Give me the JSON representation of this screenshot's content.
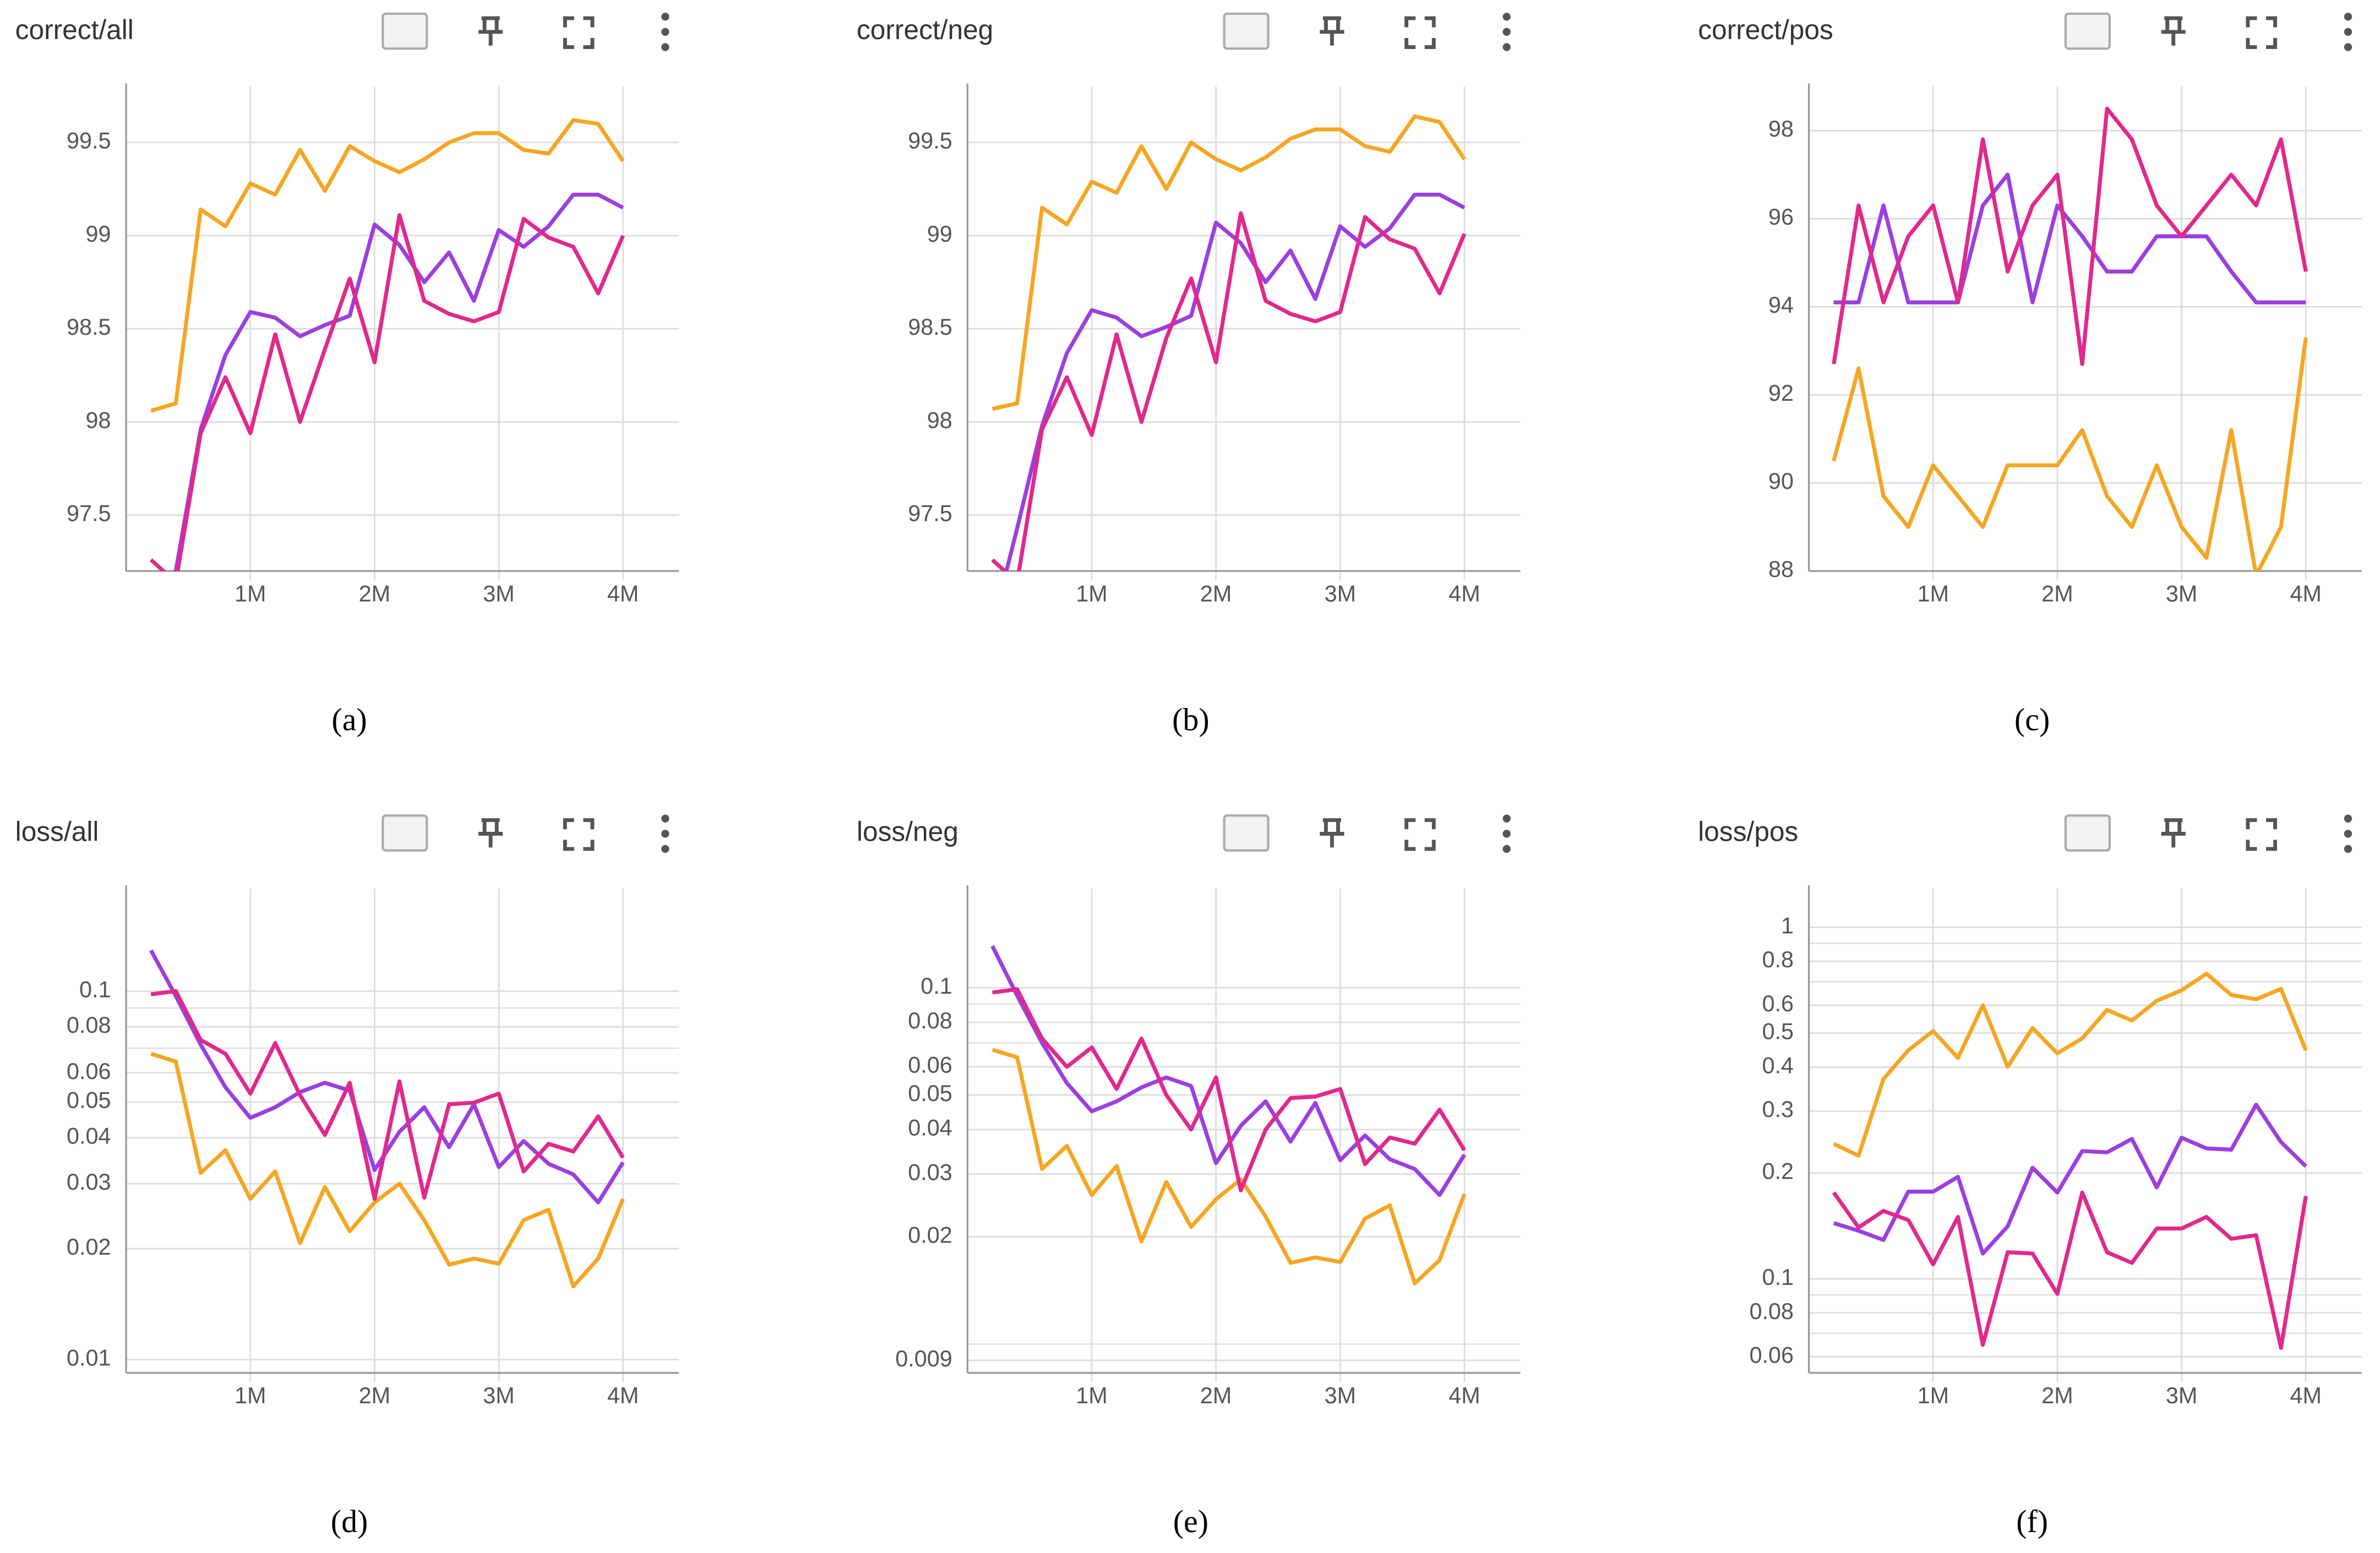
{
  "chart_data": [
    {
      "type": "line",
      "title": "correct/all",
      "caption": "(a)",
      "grid": true,
      "log_scale": false,
      "x": [
        0.2,
        0.4,
        0.6,
        0.8,
        1.0,
        1.2,
        1.4,
        1.6,
        1.8,
        2.0,
        2.2,
        2.4,
        2.6,
        2.8,
        3.0,
        3.2,
        3.4,
        3.6,
        3.8,
        4.0
      ],
      "xlim": [
        0,
        4.45
      ],
      "xticks": [
        {
          "value": 1,
          "label": "1M"
        },
        {
          "value": 2,
          "label": "2M"
        },
        {
          "value": 3,
          "label": "3M"
        },
        {
          "value": 4,
          "label": "4M"
        }
      ],
      "ylim": [
        97.2,
        99.8
      ],
      "yticks": [
        97.5,
        98,
        98.5,
        99,
        99.5
      ],
      "series": [
        {
          "color": "#f5a623",
          "values": [
            98.06,
            98.1,
            99.14,
            99.05,
            99.28,
            99.22,
            99.46,
            99.24,
            99.48,
            99.4,
            99.34,
            99.41,
            99.5,
            99.55,
            99.55,
            99.46,
            99.44,
            99.62,
            99.6,
            99.4
          ]
        },
        {
          "color": "#9b3fe0",
          "values": [
            96.9,
            97.2,
            97.96,
            98.36,
            98.59,
            98.56,
            98.46,
            98.52,
            98.57,
            99.06,
            98.95,
            98.75,
            98.91,
            98.65,
            99.03,
            98.94,
            99.05,
            99.22,
            99.22,
            99.15
          ]
        },
        {
          "color": "#e0298c",
          "values": [
            97.26,
            97.14,
            97.94,
            98.24,
            97.94,
            98.47,
            98.0,
            98.39,
            98.77,
            98.32,
            99.11,
            98.65,
            98.58,
            98.54,
            98.59,
            99.09,
            98.99,
            98.94,
            98.69,
            99.0
          ]
        }
      ]
    },
    {
      "type": "line",
      "title": "correct/neg",
      "caption": "(b)",
      "grid": true,
      "log_scale": false,
      "x": [
        0.2,
        0.4,
        0.6,
        0.8,
        1.0,
        1.2,
        1.4,
        1.6,
        1.8,
        2.0,
        2.2,
        2.4,
        2.6,
        2.8,
        3.0,
        3.2,
        3.4,
        3.6,
        3.8,
        4.0
      ],
      "xlim": [
        0,
        4.45
      ],
      "xticks": [
        {
          "value": 1,
          "label": "1M"
        },
        {
          "value": 2,
          "label": "2M"
        },
        {
          "value": 3,
          "label": "3M"
        },
        {
          "value": 4,
          "label": "4M"
        }
      ],
      "ylim": [
        97.2,
        99.8
      ],
      "yticks": [
        97.5,
        98,
        98.5,
        99,
        99.5
      ],
      "series": [
        {
          "color": "#f5a623",
          "values": [
            98.07,
            98.1,
            99.15,
            99.06,
            99.29,
            99.23,
            99.48,
            99.25,
            99.5,
            99.41,
            99.35,
            99.42,
            99.52,
            99.57,
            99.57,
            99.48,
            99.45,
            99.64,
            99.61,
            99.41
          ]
        },
        {
          "color": "#9b3fe0",
          "values": [
            96.9,
            97.43,
            97.98,
            98.37,
            98.6,
            98.56,
            98.46,
            98.51,
            98.57,
            99.07,
            98.96,
            98.75,
            98.92,
            98.66,
            99.05,
            98.94,
            99.04,
            99.22,
            99.22,
            99.15
          ]
        },
        {
          "color": "#e0298c",
          "values": [
            97.26,
            97.14,
            97.96,
            98.24,
            97.93,
            98.47,
            98.0,
            98.45,
            98.77,
            98.32,
            99.12,
            98.65,
            98.58,
            98.54,
            98.59,
            99.1,
            98.98,
            98.93,
            98.69,
            99.01
          ]
        }
      ]
    },
    {
      "type": "line",
      "title": "correct/pos",
      "caption": "(c)",
      "grid": true,
      "log_scale": false,
      "x": [
        0.2,
        0.4,
        0.6,
        0.8,
        1.0,
        1.2,
        1.4,
        1.6,
        1.8,
        2.0,
        2.2,
        2.4,
        2.6,
        2.8,
        3.0,
        3.2,
        3.4,
        3.6,
        3.8,
        4.0
      ],
      "xlim": [
        0,
        4.45
      ],
      "xticks": [
        {
          "value": 1,
          "label": "1M"
        },
        {
          "value": 2,
          "label": "2M"
        },
        {
          "value": 3,
          "label": "3M"
        },
        {
          "value": 4,
          "label": "4M"
        }
      ],
      "ylim": [
        88,
        99
      ],
      "yticks": [
        88,
        90,
        92,
        94,
        96,
        98
      ],
      "series": [
        {
          "color": "#f5a623",
          "values": [
            90.5,
            92.6,
            89.7,
            89.0,
            90.4,
            89.7,
            89.0,
            90.4,
            90.4,
            90.4,
            91.2,
            89.7,
            89.0,
            90.4,
            89.0,
            88.3,
            91.2,
            87.9,
            89.0,
            93.3
          ]
        },
        {
          "color": "#9b3fe0",
          "values": [
            94.1,
            94.1,
            96.3,
            94.1,
            94.1,
            94.1,
            96.3,
            97.0,
            94.1,
            96.3,
            95.6,
            94.8,
            94.8,
            95.6,
            95.6,
            95.6,
            94.8,
            94.1,
            94.1,
            94.1
          ]
        },
        {
          "color": "#e0298c",
          "values": [
            92.7,
            96.3,
            94.1,
            95.6,
            96.3,
            94.1,
            97.8,
            94.8,
            96.3,
            97.0,
            92.7,
            98.5,
            97.8,
            96.3,
            95.6,
            96.3,
            97.0,
            96.3,
            97.8,
            94.8
          ]
        }
      ]
    },
    {
      "type": "line",
      "title": "loss/all",
      "caption": "(d)",
      "grid": true,
      "log_scale": true,
      "x": [
        0.2,
        0.4,
        0.6,
        0.8,
        1.0,
        1.2,
        1.4,
        1.6,
        1.8,
        2.0,
        2.2,
        2.4,
        2.6,
        2.8,
        3.0,
        3.2,
        3.4,
        3.6,
        3.8,
        4.0
      ],
      "xlim": [
        0,
        4.45
      ],
      "xticks": [
        {
          "value": 1,
          "label": "1M"
        },
        {
          "value": 2,
          "label": "2M"
        },
        {
          "value": 3,
          "label": "3M"
        },
        {
          "value": 4,
          "label": "4M"
        }
      ],
      "ylim": [
        0.0092,
        0.19
      ],
      "yticks": [
        0.01,
        0.02,
        0.03,
        0.04,
        0.05,
        0.06,
        0.08,
        0.1
      ],
      "minor_yticks": [
        0.07,
        0.09
      ],
      "series": [
        {
          "color": "#f5a623",
          "values": [
            0.0676,
            0.0644,
            0.0321,
            0.037,
            0.0273,
            0.0324,
            0.0207,
            0.0294,
            0.0223,
            0.0267,
            0.03,
            0.0239,
            0.0181,
            0.0188,
            0.0182,
            0.0239,
            0.0255,
            0.0158,
            0.0188,
            0.0273
          ]
        },
        {
          "color": "#9b3fe0",
          "values": [
            0.129,
            0.097,
            0.0716,
            0.0548,
            0.0453,
            0.0484,
            0.0532,
            0.0564,
            0.0537,
            0.0327,
            0.0415,
            0.0484,
            0.0377,
            0.0493,
            0.0333,
            0.0392,
            0.034,
            0.0318,
            0.0267,
            0.0343
          ]
        },
        {
          "color": "#e0298c",
          "values": [
            0.098,
            0.1,
            0.0737,
            0.0676,
            0.0527,
            0.0723,
            0.0522,
            0.0407,
            0.0564,
            0.0273,
            0.0569,
            0.0275,
            0.0493,
            0.0498,
            0.0527,
            0.0324,
            0.0385,
            0.0367,
            0.0457,
            0.0353
          ]
        }
      ]
    },
    {
      "type": "line",
      "title": "loss/neg",
      "caption": "(e)",
      "grid": true,
      "log_scale": true,
      "x": [
        0.2,
        0.4,
        0.6,
        0.8,
        1.0,
        1.2,
        1.4,
        1.6,
        1.8,
        2.0,
        2.2,
        2.4,
        2.6,
        2.8,
        3.0,
        3.2,
        3.4,
        3.6,
        3.8,
        4.0
      ],
      "xlim": [
        0,
        4.45
      ],
      "xticks": [
        {
          "value": 1,
          "label": "1M"
        },
        {
          "value": 2,
          "label": "2M"
        },
        {
          "value": 3,
          "label": "3M"
        },
        {
          "value": 4,
          "label": "4M"
        }
      ],
      "ylim": [
        0.0083,
        0.19
      ],
      "yticks": [
        0.009,
        0.02,
        0.03,
        0.04,
        0.05,
        0.06,
        0.08,
        0.1
      ],
      "minor_yticks": [
        0.01,
        0.07,
        0.09
      ],
      "series": [
        {
          "color": "#f5a623",
          "values": [
            0.067,
            0.0638,
            0.031,
            0.036,
            0.0262,
            0.0316,
            0.0194,
            0.0285,
            0.0213,
            0.0255,
            0.029,
            0.0228,
            0.0169,
            0.0175,
            0.017,
            0.0225,
            0.0245,
            0.0148,
            0.0172,
            0.0264
          ]
        },
        {
          "color": "#9b3fe0",
          "values": [
            0.131,
            0.095,
            0.07,
            0.054,
            0.045,
            0.048,
            0.0525,
            0.056,
            0.053,
            0.0322,
            0.041,
            0.048,
            0.037,
            0.0475,
            0.0328,
            0.0385,
            0.033,
            0.031,
            0.0262,
            0.034
          ]
        },
        {
          "color": "#e0298c",
          "values": [
            0.097,
            0.099,
            0.072,
            0.06,
            0.068,
            0.052,
            0.072,
            0.05,
            0.04,
            0.056,
            0.027,
            0.04,
            0.049,
            0.0495,
            0.052,
            0.032,
            0.038,
            0.0365,
            0.0455,
            0.035
          ]
        }
      ]
    },
    {
      "type": "line",
      "title": "loss/pos",
      "caption": "(f)",
      "grid": true,
      "log_scale": true,
      "x": [
        0.2,
        0.4,
        0.6,
        0.8,
        1.0,
        1.2,
        1.4,
        1.6,
        1.8,
        2.0,
        2.2,
        2.4,
        2.6,
        2.8,
        3.0,
        3.2,
        3.4,
        3.6,
        3.8,
        4.0
      ],
      "xlim": [
        0,
        4.45
      ],
      "xticks": [
        {
          "value": 1,
          "label": "1M"
        },
        {
          "value": 2,
          "label": "2M"
        },
        {
          "value": 3,
          "label": "3M"
        },
        {
          "value": 4,
          "label": "4M"
        }
      ],
      "ylim": [
        0.054,
        1.29
      ],
      "yticks": [
        0.06,
        0.08,
        0.1,
        0.2,
        0.3,
        0.4,
        0.5,
        0.6,
        0.8,
        1
      ],
      "minor_yticks": [
        0.07,
        0.09,
        0.7,
        0.9
      ],
      "series": [
        {
          "color": "#f5a623",
          "values": [
            0.242,
            0.224,
            0.37,
            0.447,
            0.507,
            0.425,
            0.6,
            0.401,
            0.517,
            0.438,
            0.483,
            0.582,
            0.543,
            0.618,
            0.662,
            0.738,
            0.642,
            0.624,
            0.668,
            0.447
          ]
        },
        {
          "color": "#9b3fe0",
          "values": [
            0.144,
            0.137,
            0.129,
            0.177,
            0.177,
            0.195,
            0.118,
            0.141,
            0.207,
            0.176,
            0.231,
            0.229,
            0.25,
            0.182,
            0.252,
            0.235,
            0.233,
            0.313,
            0.245,
            0.209
          ]
        },
        {
          "color": "#e0298c",
          "values": [
            0.176,
            0.14,
            0.156,
            0.147,
            0.11,
            0.15,
            0.0649,
            0.119,
            0.118,
            0.0906,
            0.176,
            0.119,
            0.111,
            0.139,
            0.139,
            0.15,
            0.13,
            0.133,
            0.0636,
            0.172
          ]
        }
      ]
    }
  ]
}
